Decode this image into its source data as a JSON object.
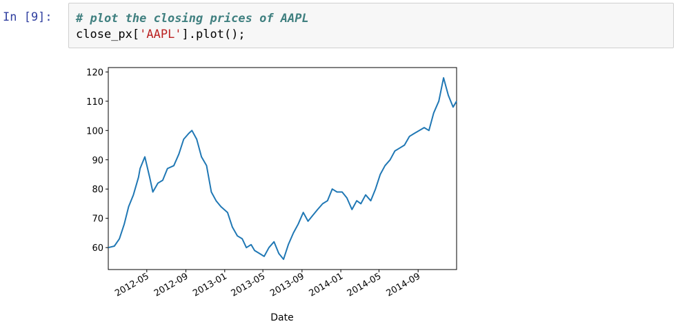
{
  "cell": {
    "prompt": "In [9]:",
    "comment": "# plot the closing prices of AAPL",
    "code_before": "close_px[",
    "code_string": "'AAPL'",
    "code_after": "].plot();"
  },
  "chart_data": {
    "type": "line",
    "xlabel": "Date",
    "ylabel": "",
    "title": "",
    "ylim": [
      52.5,
      121.5
    ],
    "xlim": [
      "2012-01-01",
      "2014-12-31"
    ],
    "yticks": [
      60,
      70,
      80,
      90,
      100,
      110,
      120
    ],
    "xticks": [
      "2012-05",
      "2012-09",
      "2013-01",
      "2013-05",
      "2013-09",
      "2014-01",
      "2014-05",
      "2014-09"
    ],
    "grid": false,
    "series": [
      {
        "color": "#1f77b4",
        "x": [
          "2012-01-01",
          "2012-01-20",
          "2012-02-05",
          "2012-02-20",
          "2012-03-05",
          "2012-03-20",
          "2012-04-05",
          "2012-04-10",
          "2012-04-25",
          "2012-05-10",
          "2012-05-20",
          "2012-06-05",
          "2012-06-20",
          "2012-07-05",
          "2012-07-25",
          "2012-08-10",
          "2012-08-25",
          "2012-09-10",
          "2012-09-20",
          "2012-10-05",
          "2012-10-20",
          "2012-11-05",
          "2012-11-20",
          "2012-12-05",
          "2012-12-20",
          "2013-01-10",
          "2013-01-25",
          "2013-02-10",
          "2013-02-25",
          "2013-03-10",
          "2013-03-25",
          "2013-04-05",
          "2013-04-20",
          "2013-05-05",
          "2013-05-20",
          "2013-06-05",
          "2013-06-20",
          "2013-07-05",
          "2013-07-20",
          "2013-08-05",
          "2013-08-20",
          "2013-09-05",
          "2013-09-20",
          "2013-10-05",
          "2013-10-20",
          "2013-11-05",
          "2013-11-20",
          "2013-12-05",
          "2013-12-20",
          "2014-01-05",
          "2014-01-20",
          "2014-02-05",
          "2014-02-20",
          "2014-03-05",
          "2014-03-20",
          "2014-04-05",
          "2014-04-20",
          "2014-05-05",
          "2014-05-20",
          "2014-06-05",
          "2014-06-20",
          "2014-07-05",
          "2014-07-20",
          "2014-08-05",
          "2014-08-20",
          "2014-09-05",
          "2014-09-20",
          "2014-10-05",
          "2014-10-20",
          "2014-11-05",
          "2014-11-20",
          "2014-12-05",
          "2014-12-20",
          "2014-12-31"
        ],
        "y": [
          60,
          60.5,
          63,
          68,
          74,
          78,
          84,
          87,
          91,
          84,
          79,
          82,
          83,
          87,
          88,
          92,
          97,
          99,
          100,
          97,
          91,
          88,
          79,
          76,
          74,
          72,
          67,
          64,
          63,
          60,
          61,
          59,
          58,
          57,
          60,
          62,
          58,
          56,
          61,
          65,
          68,
          72,
          69,
          71,
          73,
          75,
          76,
          80,
          79,
          79,
          77,
          73,
          76,
          75,
          78,
          76,
          80,
          85,
          88,
          90,
          93,
          94,
          95,
          98,
          99,
          100,
          101,
          100,
          106,
          110,
          118,
          112,
          108,
          110
        ]
      }
    ]
  }
}
